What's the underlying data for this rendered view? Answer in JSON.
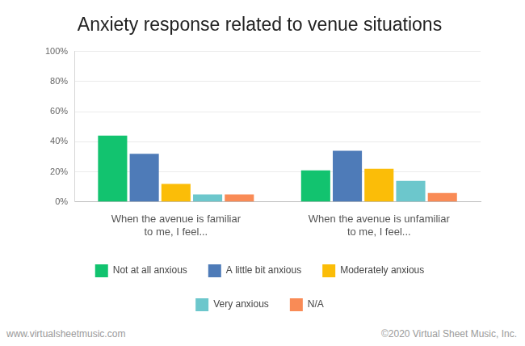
{
  "chart_data": {
    "type": "bar",
    "title": "Anxiety response related to venue situations",
    "categories": [
      "When the avenue is familiar to me, I feel...",
      "When the avenue is unfamiliar to me, I feel..."
    ],
    "series": [
      {
        "name": "Not at all anxious",
        "color": "#12c36f",
        "values": [
          44,
          21
        ]
      },
      {
        "name": "A little bit anxious",
        "color": "#4e7bb8",
        "values": [
          32,
          34
        ]
      },
      {
        "name": "Moderately anxious",
        "color": "#fbbd08",
        "values": [
          12,
          22
        ]
      },
      {
        "name": "Very anxious",
        "color": "#6cc7cc",
        "values": [
          5,
          14
        ]
      },
      {
        "name": "N/A",
        "color": "#f98b56",
        "values": [
          5,
          6
        ]
      }
    ],
    "ylim": [
      0,
      100
    ],
    "yticks": [
      {
        "value": 0,
        "label": "0%"
      },
      {
        "value": 20,
        "label": "20%"
      },
      {
        "value": 40,
        "label": "40%"
      },
      {
        "value": 60,
        "label": "60%"
      },
      {
        "value": 80,
        "label": "80%"
      },
      {
        "value": 100,
        "label": "100%"
      }
    ],
    "grid": true,
    "legend": "bottom",
    "annotations": [
      "www.virtualsheetmusic.com",
      "©2020 Virtual Sheet Music, Inc."
    ]
  }
}
